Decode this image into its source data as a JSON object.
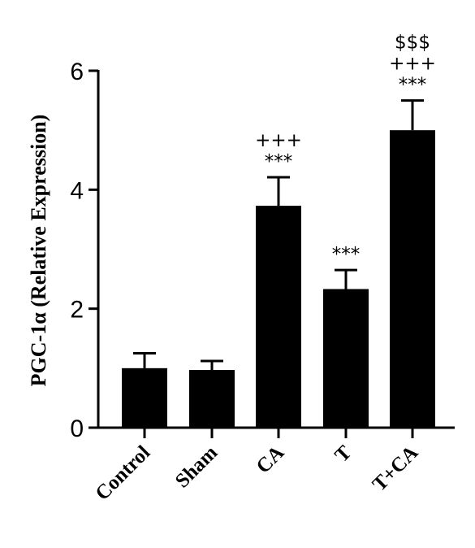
{
  "chart_data": {
    "type": "bar",
    "title": "",
    "xlabel": "",
    "ylabel": "PGC-1α (Relative Expression)",
    "ylim": [
      0,
      6
    ],
    "yticks": [
      0,
      2,
      4,
      6
    ],
    "categories": [
      "Control",
      "Sham",
      "CA",
      "T",
      "T+CA"
    ],
    "values": [
      1.0,
      0.97,
      3.73,
      2.33,
      5.0
    ],
    "error_bars": [
      0.25,
      0.15,
      0.48,
      0.32,
      0.5
    ],
    "annotations": [
      [],
      [],
      [
        "+++",
        "***"
      ],
      [
        "***"
      ],
      [
        "$$$",
        "+++",
        "***"
      ]
    ],
    "bar_color": "#000000",
    "grid": false,
    "legend": "none"
  }
}
